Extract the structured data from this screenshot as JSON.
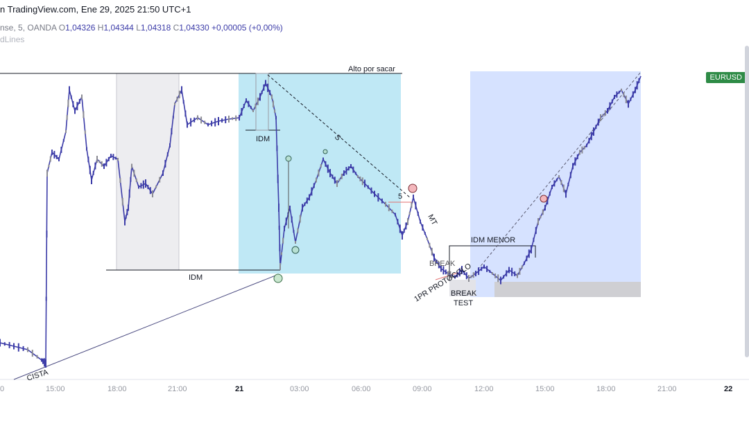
{
  "header": {
    "title": "n TradingView.com, Ene 29, 2025 21:50 UTC+1"
  },
  "ohlc": {
    "symbol": "nse, 5, OANDA",
    "o_label": "O",
    "o_value": "1,04326",
    "h_label": "H",
    "h_value": "1,04344",
    "l_label": "L",
    "l_value": "1,04318",
    "c_label": "C",
    "c_value": "1,04330",
    "change": "+0,00005 (+0,00%)"
  },
  "indicator": {
    "label": "dLines"
  },
  "price_badge": {
    "label": "EURUSD",
    "color": "#2e8b46"
  },
  "time_axis": [
    "0",
    "15:00",
    "18:00",
    "21:00",
    "21",
    "03:00",
    "06:00",
    "09:00",
    "12:00",
    "15:00",
    "18:00",
    "21:00",
    "22"
  ],
  "annotations": {
    "alto": "Alto por sacar",
    "idm_top": "IDM",
    "idm_bottom": "IDM",
    "idm_menor": "IDM MENOR",
    "five": "5",
    "s_label": "S",
    "mt": "MT",
    "break_label": "BREAK",
    "protocolo": "1PR PROTOCOLO",
    "break_test_1": "BREAK",
    "break_test_2": "TEST",
    "cista": "CISTA"
  },
  "colors": {
    "candle": "#3c3ca8",
    "zone_cyan": "#bfe8f5",
    "zone_blue": "#d6e2ff",
    "zone_gray": "#ededf0",
    "demand": "#cfcfd3"
  },
  "chart_data": {
    "type": "candlestick",
    "symbol": "EURUSD",
    "timeframe": "5",
    "last": {
      "open": 1.04326,
      "high": 1.04344,
      "low": 1.04318,
      "close": 1.0433,
      "change": 5e-05
    }
  }
}
